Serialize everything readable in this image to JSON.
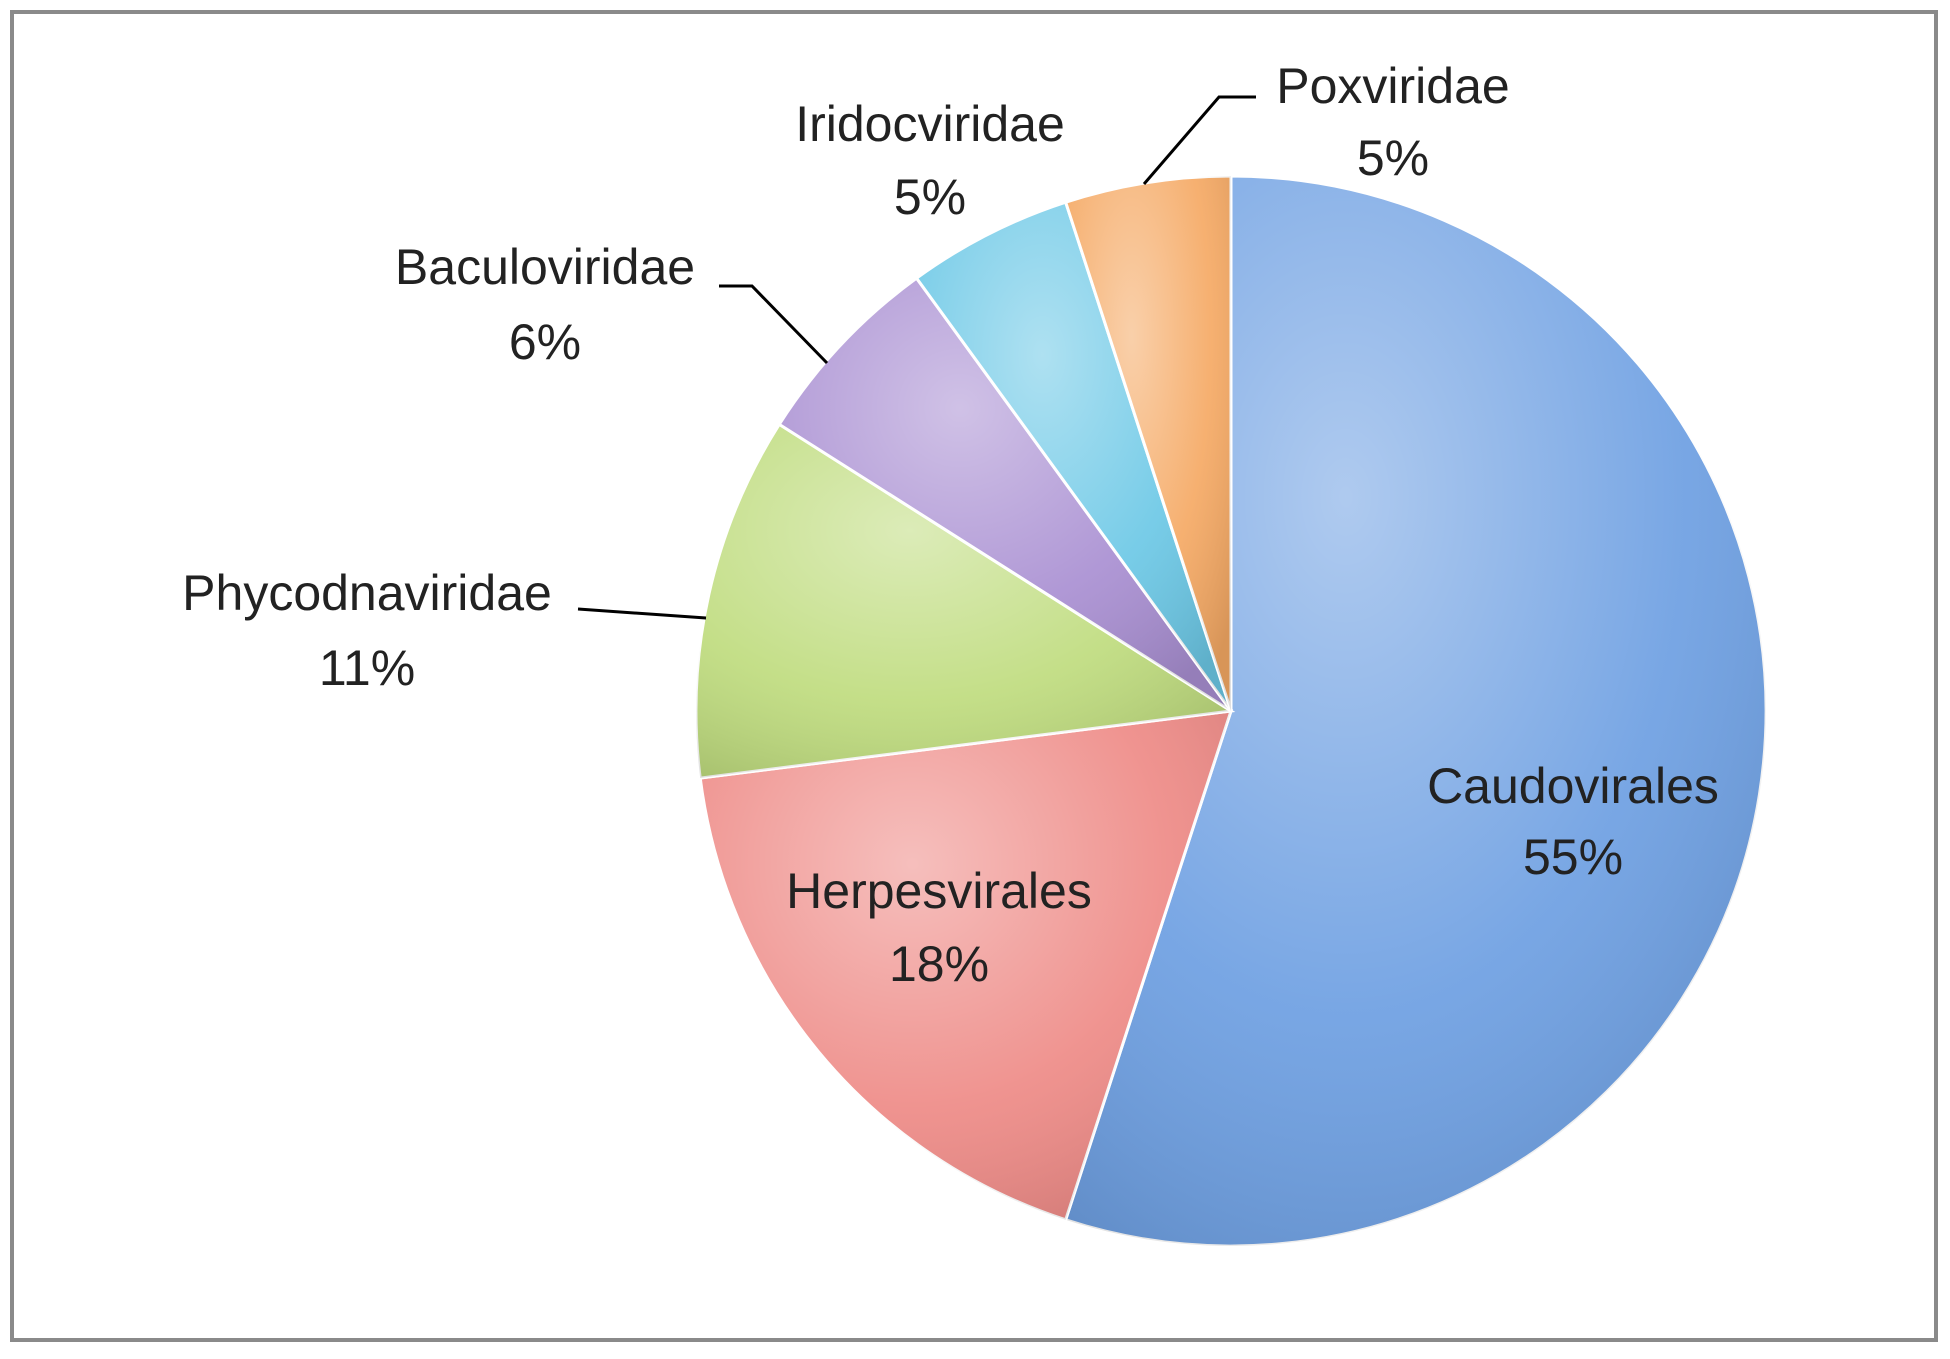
{
  "chart_data": {
    "type": "pie",
    "categories": [
      "Caudovirales",
      "Herpesvirales",
      "Phycodnaviridae",
      "Baculoviridae",
      "Iridocviridae",
      "Poxviridae"
    ],
    "values": [
      55,
      18,
      11,
      6,
      5,
      5
    ],
    "value_labels": [
      "55%",
      "18%",
      "11%",
      "6%",
      "5%",
      "5%"
    ],
    "colors": [
      "#6d9fe2",
      "#ee8a86",
      "#bfdc7e",
      "#a98fd2",
      "#6cc8e6",
      "#f5a964"
    ]
  }
}
